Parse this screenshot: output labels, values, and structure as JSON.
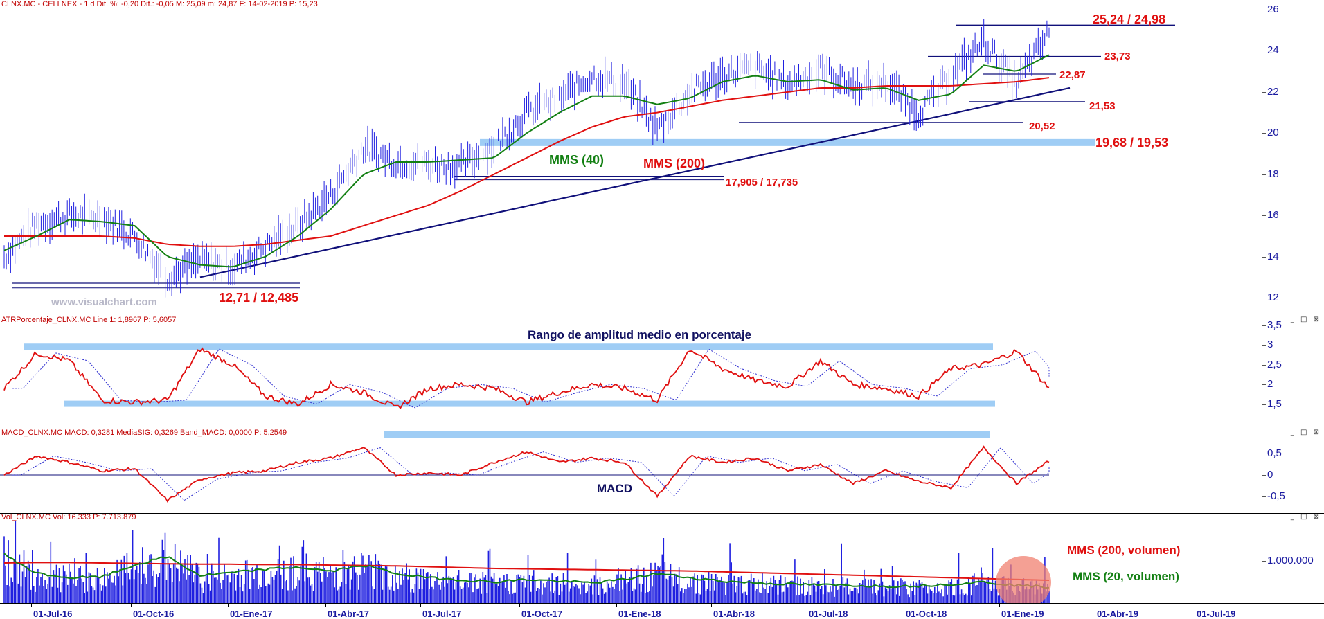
{
  "panes": {
    "price": {
      "header": "CLNX.MC - CELLNEX - 1 d  Dif. %: -0,20  Dif.: -0,05  M: 25,09  m: 24,87  F: 14-02-2019  P: 15,23"
    },
    "atr": {
      "header": "ATRPorcentaje_CLNX.MC  Line 1: 1,8967  P: 5,6057"
    },
    "macd": {
      "header": "MACD_CLNX.MC  MACD: 0,3281  MediaSIG: 0,3269  Band_MACD: 0,0000  P: 5,2549"
    },
    "vol": {
      "header": "Vol_CLNX.MC  Vol: 16.333  P: 7.713.879"
    }
  },
  "window_buttons": "_ □ ⊠",
  "watermark": "www.visualchart.com",
  "colors": {
    "price": "#2020e0",
    "mms40": "#138013",
    "mms200": "#e01010",
    "trend": "#10107a",
    "zone": "#9fcdf5",
    "label_red": "#e01010",
    "label_green": "#138013",
    "title_blue": "#101060"
  },
  "annotations": {
    "resistance_top": "25,24 / 24,98",
    "level_2373": "23,73",
    "level_2287": "22,87",
    "level_2153": "21,53",
    "level_2052": "20,52",
    "zone_1968": "19,68 / 19,53",
    "level_17905": "17,905 / 17,735",
    "support_1271": "12,71 / 12,485",
    "mms40": "MMS (40)",
    "mms200": "MMS (200)",
    "atr_title": "Rango de amplitud medio en porcentaje",
    "macd_title": "MACD",
    "vol_mms200": "MMS (200, volumen)",
    "vol_mms20": "MMS (20, volumen)"
  },
  "chart_data": [
    {
      "type": "line",
      "title": "CLNX.MC - CELLNEX - 1 d",
      "x": [
        "2016-06",
        "2016-07",
        "2016-08",
        "2016-09",
        "2016-10",
        "2016-11",
        "2016-12",
        "2017-01",
        "2017-02",
        "2017-03",
        "2017-04",
        "2017-05",
        "2017-06",
        "2017-07",
        "2017-08",
        "2017-09",
        "2017-10",
        "2017-11",
        "2017-12",
        "2018-01",
        "2018-02",
        "2018-03",
        "2018-04",
        "2018-05",
        "2018-06",
        "2018-07",
        "2018-08",
        "2018-09",
        "2018-10",
        "2018-11",
        "2018-12",
        "2019-01",
        "2019-02"
      ],
      "series": [
        {
          "name": "",
          "values": [
            14.0,
            15.6,
            16.0,
            15.9,
            15.0,
            13.0,
            13.8,
            13.5,
            14.5,
            15.5,
            17.0,
            19.3,
            18.6,
            18.5,
            18.4,
            19.4,
            21.0,
            21.7,
            22.8,
            22.4,
            20.2,
            22.0,
            22.8,
            23.2,
            22.4,
            23.1,
            22.3,
            22.5,
            21.0,
            22.8,
            24.5,
            22.4,
            24.9
          ]
        },
        {
          "name": "MMS (40)",
          "values": [
            14.3,
            15.0,
            15.8,
            15.7,
            15.5,
            14.0,
            13.6,
            13.5,
            14.0,
            15.0,
            16.3,
            18.0,
            18.6,
            18.6,
            18.7,
            18.8,
            20.0,
            21.0,
            21.8,
            21.8,
            21.4,
            21.7,
            22.5,
            22.8,
            22.5,
            22.6,
            22.1,
            22.2,
            21.6,
            21.9,
            23.3,
            23.0,
            23.8
          ]
        },
        {
          "name": "MMS (200)",
          "values": [
            15.0,
            15.0,
            15.0,
            15.0,
            14.9,
            14.6,
            14.5,
            14.5,
            14.6,
            14.8,
            15.0,
            15.5,
            16.0,
            16.5,
            17.2,
            18.0,
            18.8,
            19.6,
            20.3,
            20.8,
            21.0,
            21.3,
            21.6,
            21.8,
            22.0,
            22.2,
            22.2,
            22.3,
            22.3,
            22.3,
            22.4,
            22.5,
            22.7
          ]
        }
      ],
      "xlabel": "",
      "ylabel": "",
      "ylim": [
        11.5,
        26
      ],
      "yticks": [
        "12",
        "14",
        "16",
        "18",
        "20",
        "22",
        "24",
        "26"
      ],
      "xticks": [
        "01-Jul-16",
        "01-Oct-16",
        "01-Ene-17",
        "01-Abr-17",
        "01-Jul-17",
        "01-Oct-17",
        "01-Ene-18",
        "01-Abr-18",
        "01-Jul-18",
        "01-Oct-18",
        "01-Ene-19",
        "01-Abr-19",
        "01-Jul-19"
      ],
      "hlines": [
        25.24,
        23.73,
        22.87,
        21.53,
        20.52,
        17.905,
        12.71
      ],
      "zone": [
        19.53,
        19.68
      ],
      "trendline": [
        {
          "x": "2016-12",
          "y": 13.0
        },
        {
          "x": "2019-02",
          "y": 22.2
        }
      ]
    },
    {
      "type": "line",
      "title": "ATRPorcentaje_CLNX.MC",
      "series": [
        {
          "name": "Line 1",
          "values": [
            1.9,
            2.8,
            2.6,
            1.6,
            1.55,
            1.6,
            2.9,
            2.5,
            1.7,
            1.5,
            2.0,
            1.8,
            1.4,
            1.9,
            2.0,
            1.9,
            1.55,
            1.8,
            2.0,
            1.9,
            1.6,
            2.9,
            2.4,
            2.1,
            1.95,
            2.6,
            2.0,
            1.9,
            1.7,
            2.4,
            2.5,
            2.85,
            1.9
          ]
        }
      ],
      "ylim": [
        1.0,
        3.5
      ],
      "yticks": [
        "1,5",
        "2",
        "2,5",
        "3",
        "3,5"
      ]
    },
    {
      "type": "line",
      "title": "MACD_CLNX.MC",
      "series": [
        {
          "name": "MACD",
          "values": [
            0.0,
            0.45,
            0.3,
            0.1,
            0.15,
            -0.6,
            -0.1,
            0.05,
            0.1,
            0.3,
            0.4,
            0.65,
            0.0,
            0.05,
            0.0,
            0.3,
            0.55,
            0.3,
            0.4,
            0.3,
            -0.5,
            0.45,
            0.3,
            0.4,
            0.1,
            0.25,
            -0.2,
            0.1,
            -0.15,
            -0.3,
            0.65,
            -0.2,
            0.33
          ]
        }
      ],
      "ylim": [
        -0.8,
        0.9
      ],
      "yticks": [
        "-0,5",
        "0",
        "0,5"
      ]
    },
    {
      "type": "bar",
      "title": "Vol_CLNX.MC",
      "yticks": [
        "1.000.000"
      ],
      "series": [
        {
          "name": "MMS (200, volumen)",
          "values": [
            950000,
            960000,
            960000,
            950000,
            940000,
            930000,
            920000,
            920000,
            910000,
            910000,
            900000,
            890000,
            880000,
            860000,
            840000,
            820000,
            810000,
            800000,
            790000,
            780000,
            770000,
            760000,
            740000,
            720000,
            700000,
            680000,
            660000,
            640000,
            620000,
            600000,
            580000,
            560000,
            540000
          ]
        },
        {
          "name": "MMS (20, volumen)",
          "values": [
            1150000,
            700000,
            600000,
            620000,
            900000,
            1100000,
            650000,
            720000,
            800000,
            850000,
            750000,
            900000,
            700000,
            600000,
            550000,
            500000,
            560000,
            520000,
            480000,
            560000,
            700000,
            600000,
            520000,
            480000,
            450000,
            430000,
            420000,
            400000,
            410000,
            450000,
            500000,
            420000,
            380000
          ]
        }
      ]
    }
  ]
}
